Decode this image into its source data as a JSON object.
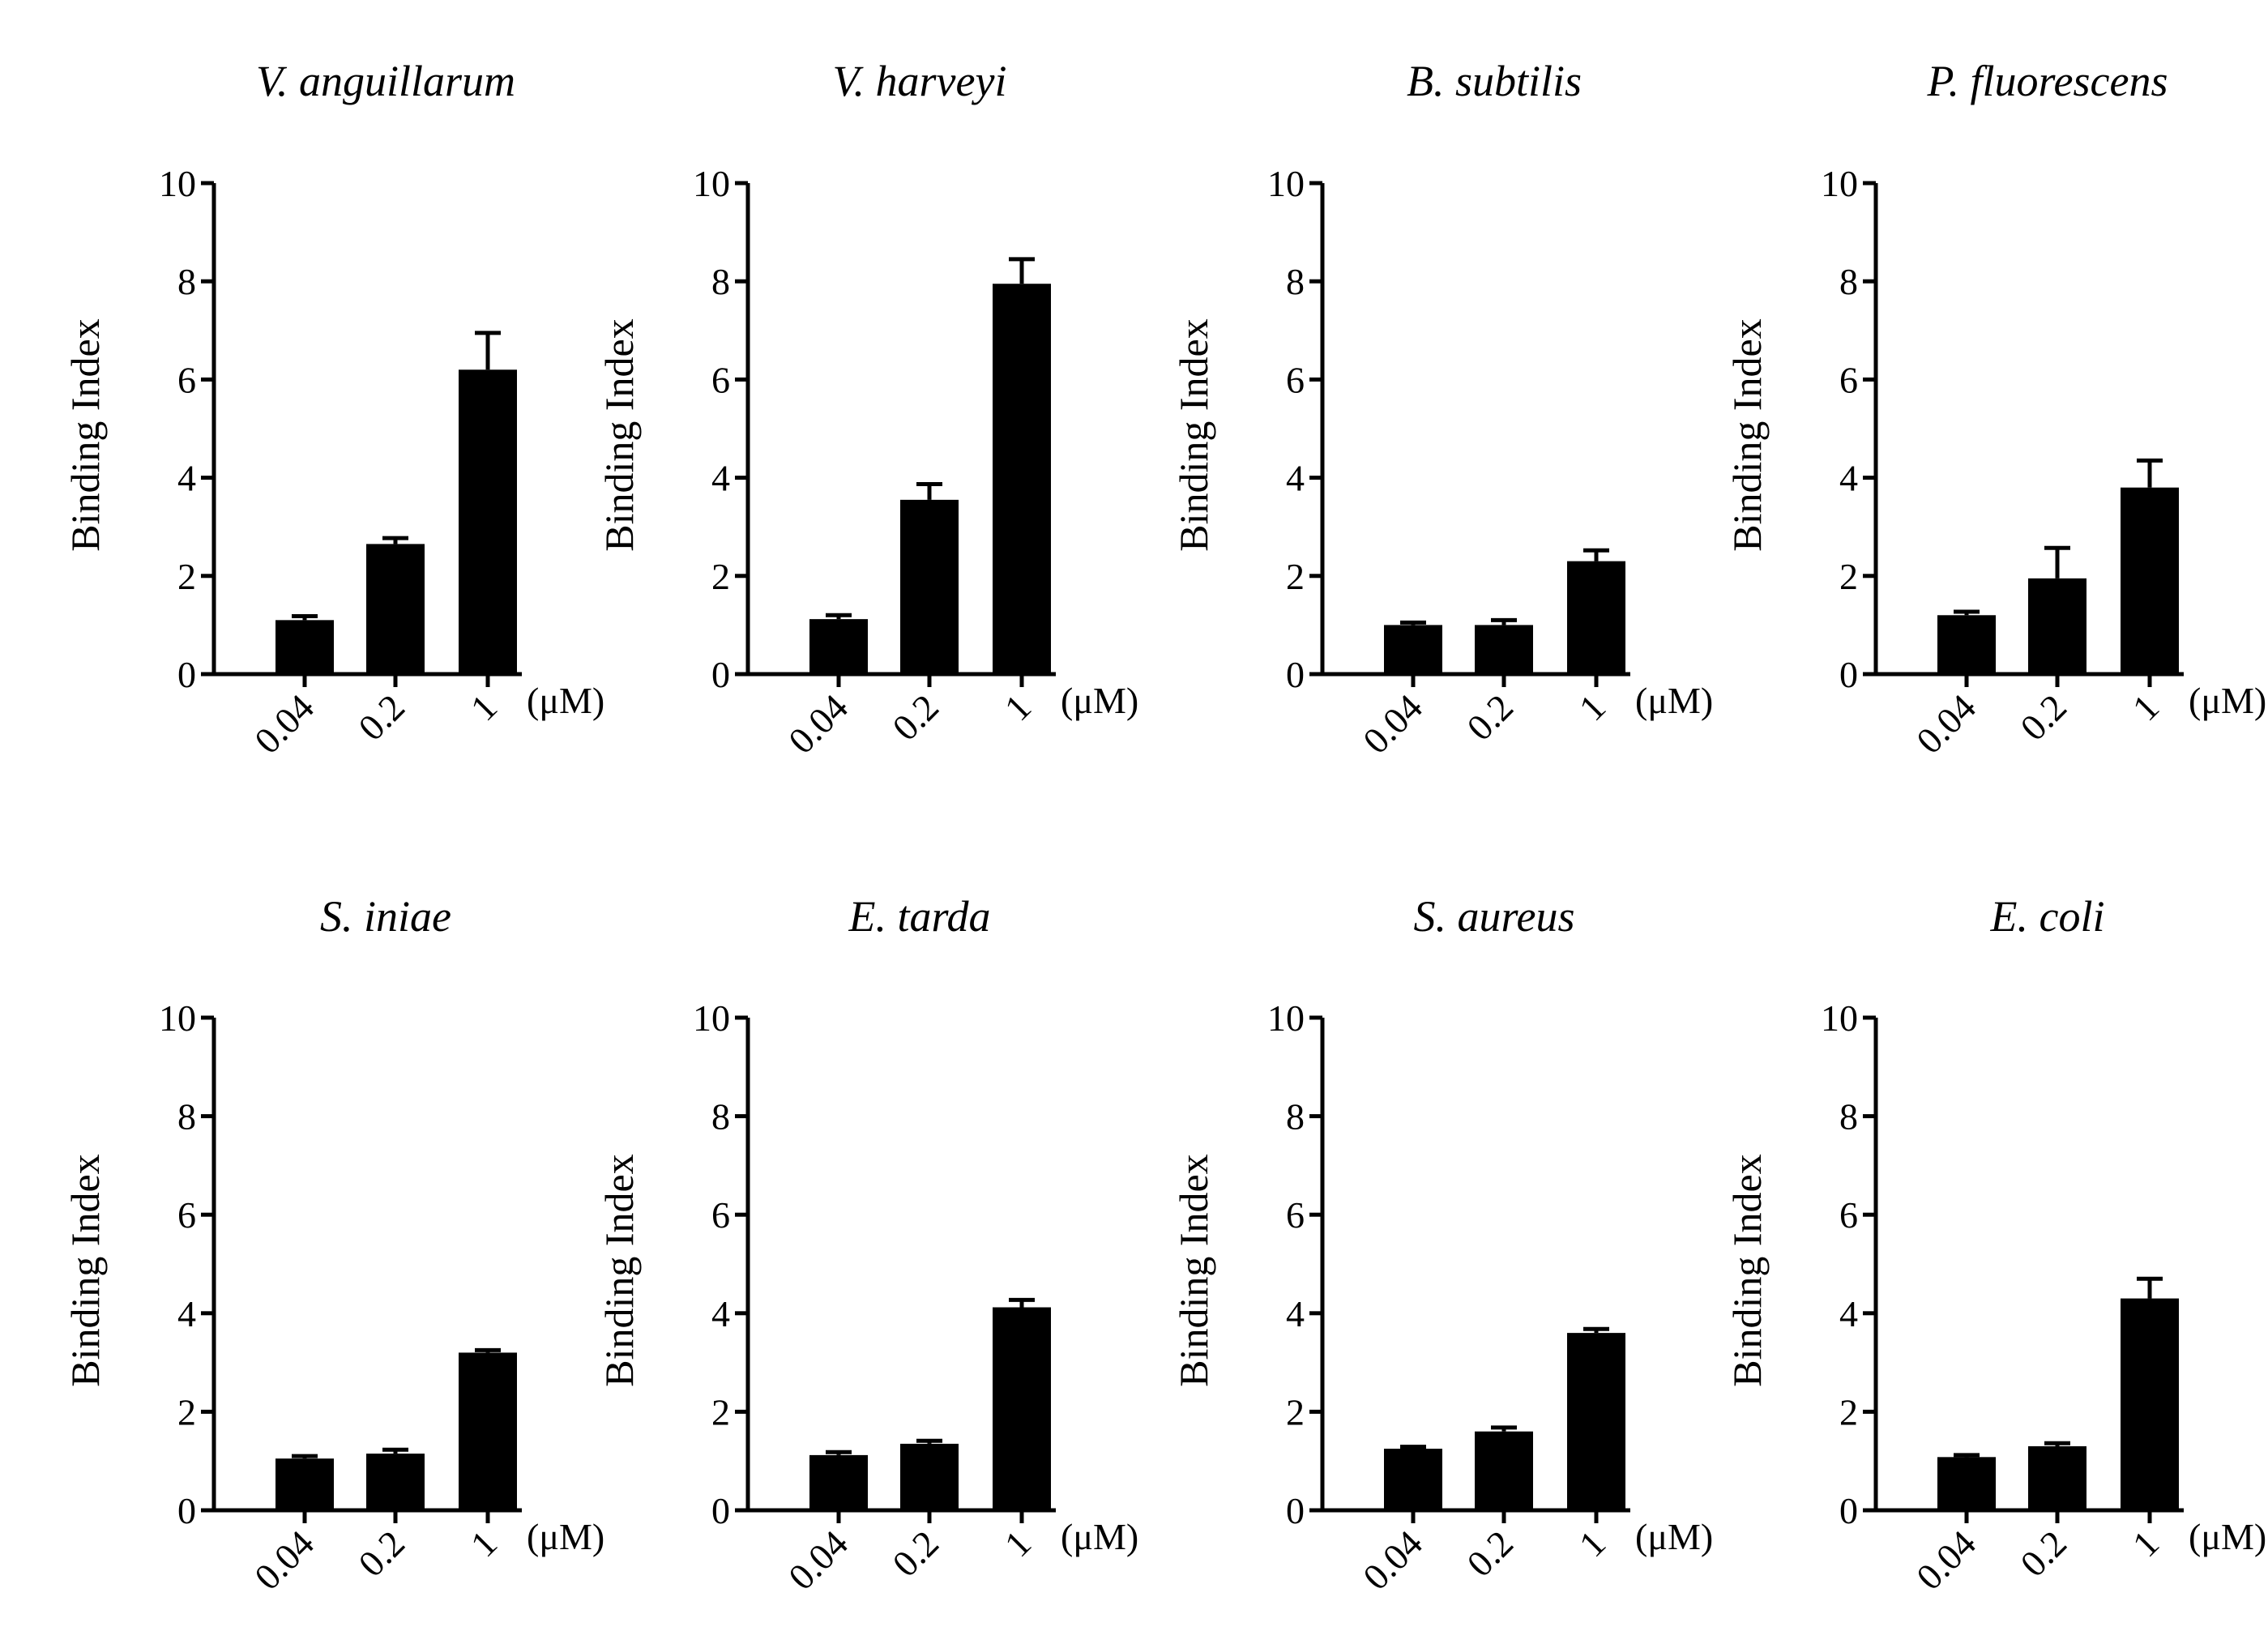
{
  "chart_data": [
    {
      "type": "bar",
      "title": "V. anguillarum",
      "ylabel": "Binding Index",
      "xlabel": "(μM)",
      "categories": [
        "0.04",
        "0.2",
        "1"
      ],
      "values": [
        1.1,
        2.65,
        6.2
      ],
      "errors": [
        0.08,
        0.12,
        0.75
      ],
      "ylim": [
        0,
        10
      ],
      "yticks": [
        "0",
        "2",
        "4",
        "6",
        "8",
        "10"
      ]
    },
    {
      "type": "bar",
      "title": "V. harveyi",
      "ylabel": "Binding Index",
      "xlabel": "(μM)",
      "categories": [
        "0.04",
        "0.2",
        "1"
      ],
      "values": [
        1.12,
        3.55,
        7.95
      ],
      "errors": [
        0.08,
        0.32,
        0.5
      ],
      "ylim": [
        0,
        10
      ],
      "yticks": [
        "0",
        "2",
        "4",
        "6",
        "8",
        "10"
      ]
    },
    {
      "type": "bar",
      "title": "B. subtilis",
      "ylabel": "Binding Index",
      "xlabel": "(μM)",
      "categories": [
        "0.04",
        "0.2",
        "1"
      ],
      "values": [
        1.0,
        1.0,
        2.3
      ],
      "errors": [
        0.05,
        0.1,
        0.22
      ],
      "ylim": [
        0,
        10
      ],
      "yticks": [
        "0",
        "2",
        "4",
        "6",
        "8",
        "10"
      ]
    },
    {
      "type": "bar",
      "title": "P. fluorescens",
      "ylabel": "Binding Index",
      "xlabel": "(μM)",
      "categories": [
        "0.04",
        "0.2",
        "1"
      ],
      "values": [
        1.2,
        1.95,
        3.8
      ],
      "errors": [
        0.07,
        0.62,
        0.55
      ],
      "ylim": [
        0,
        10
      ],
      "yticks": [
        "0",
        "2",
        "4",
        "6",
        "8",
        "10"
      ]
    },
    {
      "type": "bar",
      "title": "S. iniae",
      "ylabel": "Binding Index",
      "xlabel": "(μM)",
      "categories": [
        "0.04",
        "0.2",
        "1"
      ],
      "values": [
        1.05,
        1.15,
        3.2
      ],
      "errors": [
        0.05,
        0.08,
        0.05
      ],
      "ylim": [
        0,
        10
      ],
      "yticks": [
        "0",
        "2",
        "4",
        "6",
        "8",
        "10"
      ]
    },
    {
      "type": "bar",
      "title": "E. tarda",
      "ylabel": "Binding Index",
      "xlabel": "(μM)",
      "categories": [
        "0.04",
        "0.2",
        "1"
      ],
      "values": [
        1.12,
        1.35,
        4.12
      ],
      "errors": [
        0.06,
        0.06,
        0.15
      ],
      "ylim": [
        0,
        10
      ],
      "yticks": [
        "0",
        "2",
        "4",
        "6",
        "8",
        "10"
      ]
    },
    {
      "type": "bar",
      "title": "S. aureus",
      "ylabel": "Binding Index",
      "xlabel": "(μM)",
      "categories": [
        "0.04",
        "0.2",
        "1"
      ],
      "values": [
        1.25,
        1.6,
        3.6
      ],
      "errors": [
        0.04,
        0.08,
        0.08
      ],
      "ylim": [
        0,
        10
      ],
      "yticks": [
        "0",
        "2",
        "4",
        "6",
        "8",
        "10"
      ]
    },
    {
      "type": "bar",
      "title": "E. coli",
      "ylabel": "Binding Index",
      "xlabel": "(μM)",
      "categories": [
        "0.04",
        "0.2",
        "1"
      ],
      "values": [
        1.08,
        1.3,
        4.3
      ],
      "errors": [
        0.04,
        0.06,
        0.4
      ],
      "ylim": [
        0,
        10
      ],
      "yticks": [
        "0",
        "2",
        "4",
        "6",
        "8",
        "10"
      ]
    }
  ]
}
